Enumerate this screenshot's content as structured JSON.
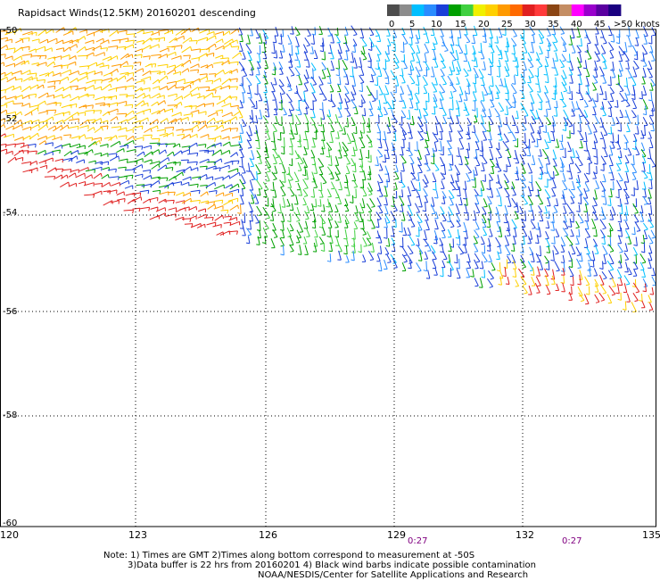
{
  "title": "Rapidsact Winds(12.5KM) 20160201 descending",
  "legend": {
    "labels": [
      "0",
      "5",
      "10",
      "15",
      "20",
      "25",
      "30",
      "35",
      "40",
      "45",
      ">50 knots"
    ],
    "colors": [
      "#4d4d4d",
      "#8c8c8c",
      "#00bfff",
      "#2a8cff",
      "#1a3fd8",
      "#00a000",
      "#40d040",
      "#f0f000",
      "#ffd000",
      "#ff9a00",
      "#ff6a00",
      "#e02020",
      "#ff3a3a",
      "#8b4513",
      "#c48d63",
      "#ff00ff",
      "#9900cc",
      "#5a00a0",
      "#1a0080"
    ]
  },
  "axes": {
    "lon_labels": [
      "120",
      "123",
      "126",
      "129",
      "132",
      "135"
    ],
    "lat_labels": [
      "-50",
      "-52",
      "-54",
      "-56",
      "-58",
      "-60"
    ]
  },
  "times": [
    "0:27",
    "0:27"
  ],
  "notes": [
    "Note: 1) Times are GMT 2)Times along bottom correspond to measurement at -50S",
    "3)Data buffer is 22 hrs from 20160201 4) Black wind barbs indicate possible contamination",
    "NOAA/NESDIS/Center for Satellite Applications and Research"
  ]
}
